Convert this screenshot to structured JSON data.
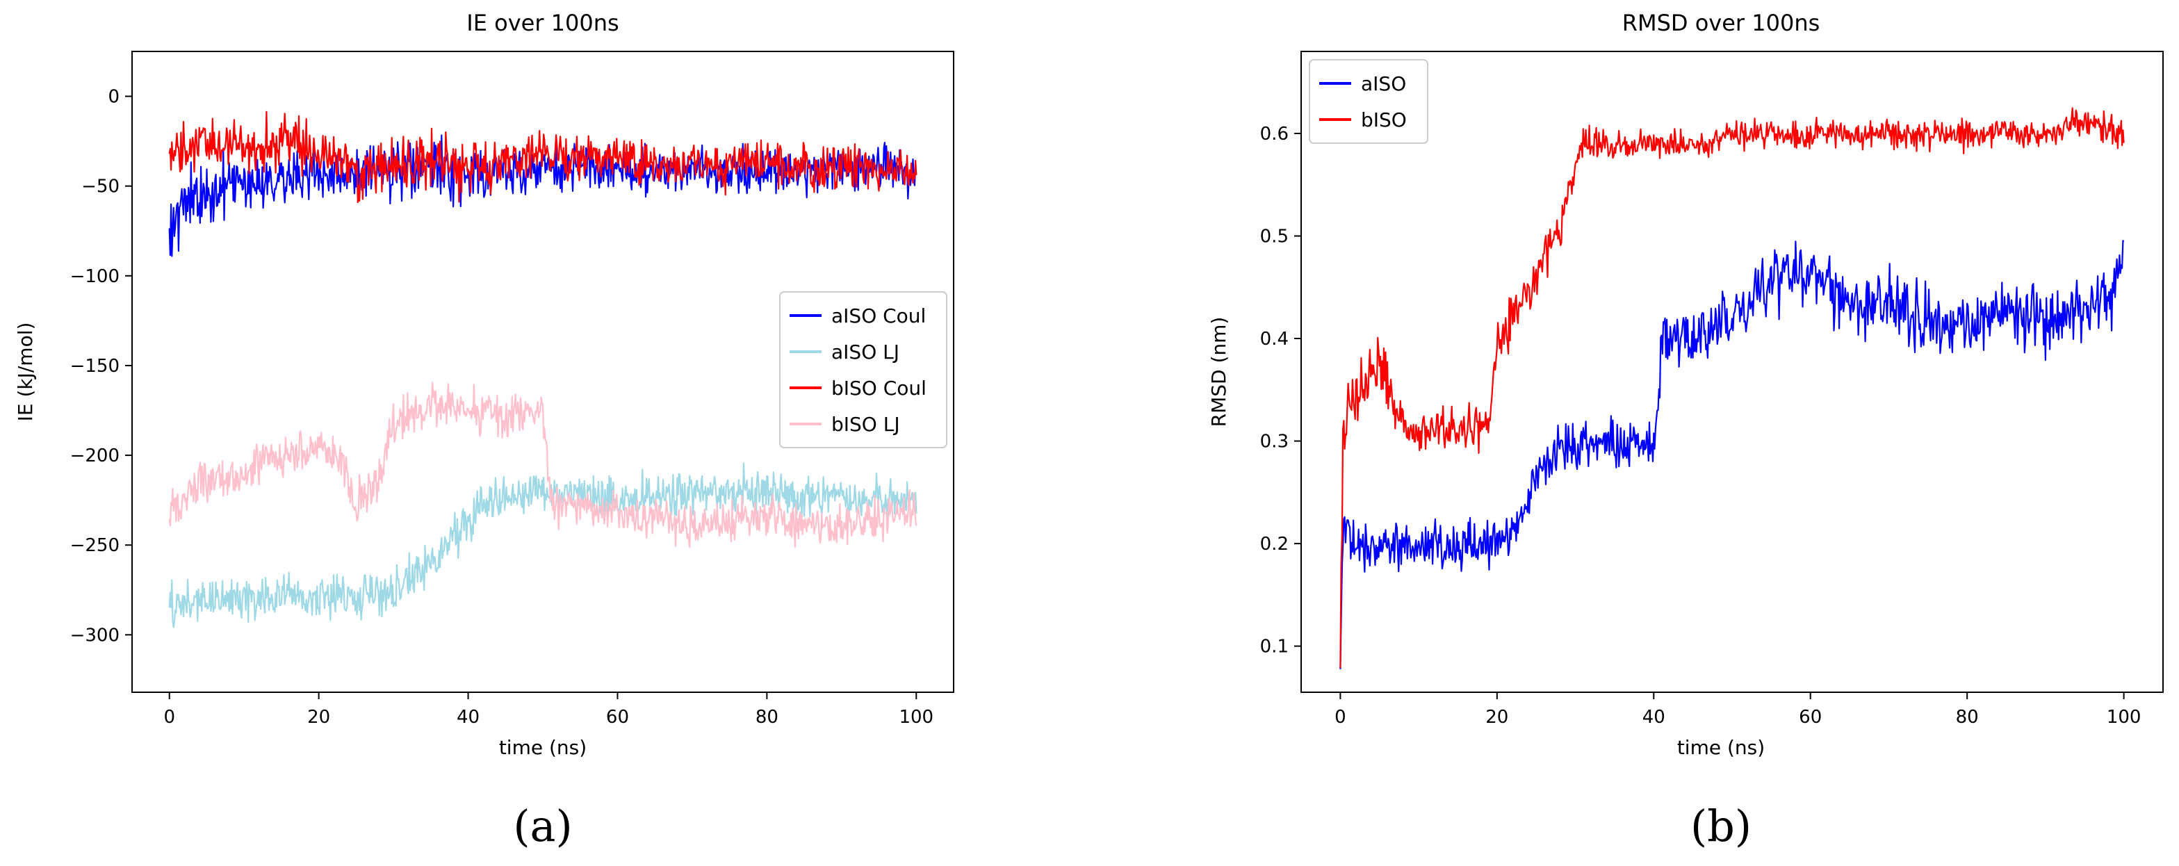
{
  "chart_data": [
    {
      "type": "line",
      "title": "IE over 100ns",
      "xlabel": "time (ns)",
      "ylabel": "IE (kJ/mol)",
      "panel_label": "(a)",
      "xlim": [
        -5,
        105
      ],
      "ylim": [
        -332,
        25
      ],
      "xticks": [
        0,
        20,
        40,
        60,
        80,
        100
      ],
      "yticks": [
        0,
        -50,
        -100,
        -150,
        -200,
        -250,
        -300
      ],
      "legend": "center-right",
      "grid": false,
      "series": [
        {
          "name": "aISO Coul",
          "color": "#0000ff",
          "x": [
            0,
            2,
            5,
            8,
            10,
            15,
            20,
            25,
            30,
            35,
            40,
            45,
            50,
            55,
            60,
            65,
            70,
            75,
            80,
            85,
            90,
            95,
            100
          ],
          "mean": [
            -70,
            -60,
            -55,
            -50,
            -47,
            -45,
            -43,
            -45,
            -42,
            -40,
            -45,
            -42,
            -40,
            -40,
            -40,
            -42,
            -40,
            -42,
            -40,
            -42,
            -40,
            -40,
            -42
          ],
          "spread": [
            30,
            25,
            22,
            22,
            22,
            22,
            22,
            24,
            25,
            25,
            25,
            20,
            18,
            18,
            18,
            18,
            18,
            18,
            18,
            18,
            18,
            18,
            18
          ]
        },
        {
          "name": "aISO LJ",
          "color": "#9fd9e6",
          "x": [
            0,
            5,
            10,
            15,
            20,
            25,
            30,
            33,
            36,
            40,
            43,
            46,
            50,
            55,
            60,
            65,
            70,
            75,
            80,
            85,
            90,
            95,
            100
          ],
          "mean": [
            -285,
            -280,
            -280,
            -278,
            -280,
            -278,
            -275,
            -268,
            -255,
            -235,
            -225,
            -222,
            -220,
            -222,
            -225,
            -222,
            -220,
            -222,
            -220,
            -225,
            -222,
            -225,
            -225
          ],
          "spread": [
            18,
            18,
            18,
            18,
            18,
            18,
            18,
            18,
            18,
            20,
            20,
            18,
            18,
            18,
            18,
            18,
            18,
            18,
            18,
            18,
            18,
            18,
            18
          ]
        },
        {
          "name": "bISO Coul",
          "color": "#ff0000",
          "x": [
            0,
            2,
            5,
            8,
            10,
            15,
            20,
            25,
            30,
            35,
            40,
            45,
            50,
            55,
            60,
            65,
            70,
            75,
            80,
            85,
            90,
            95,
            100
          ],
          "mean": [
            -35,
            -30,
            -28,
            -28,
            -28,
            -25,
            -30,
            -40,
            -40,
            -35,
            -40,
            -35,
            -32,
            -35,
            -35,
            -38,
            -38,
            -38,
            -38,
            -40,
            -40,
            -40,
            -42
          ],
          "spread": [
            22,
            20,
            20,
            20,
            20,
            20,
            22,
            24,
            22,
            22,
            24,
            20,
            18,
            18,
            18,
            18,
            18,
            18,
            18,
            18,
            18,
            18,
            18
          ]
        },
        {
          "name": "bISO LJ",
          "color": "#ffc0cb",
          "x": [
            0,
            5,
            10,
            15,
            20,
            23,
            25,
            28,
            30,
            35,
            40,
            45,
            50,
            51,
            55,
            60,
            65,
            70,
            75,
            80,
            85,
            90,
            95,
            100
          ],
          "mean": [
            -228,
            -215,
            -210,
            -200,
            -195,
            -200,
            -230,
            -215,
            -185,
            -170,
            -172,
            -180,
            -175,
            -225,
            -228,
            -232,
            -235,
            -240,
            -238,
            -235,
            -238,
            -240,
            -235,
            -232
          ],
          "spread": [
            18,
            18,
            18,
            18,
            18,
            18,
            18,
            18,
            18,
            18,
            18,
            18,
            18,
            18,
            16,
            16,
            16,
            16,
            16,
            16,
            16,
            16,
            16,
            16
          ]
        }
      ]
    },
    {
      "type": "line",
      "title": "RMSD over 100ns",
      "xlabel": "time (ns)",
      "ylabel": "RMSD (nm)",
      "panel_label": "(b)",
      "xlim": [
        -5,
        105
      ],
      "ylim": [
        0.055,
        0.68
      ],
      "xticks": [
        0,
        20,
        40,
        60,
        80,
        100
      ],
      "yticks": [
        0.1,
        0.2,
        0.3,
        0.4,
        0.5,
        0.6
      ],
      "legend": "top-left",
      "grid": false,
      "series": [
        {
          "name": "aISO",
          "color": "#0000ff",
          "x": [
            0,
            0.3,
            1,
            3,
            5,
            10,
            15,
            20,
            23,
            25,
            28,
            30,
            35,
            40,
            41,
            45,
            50,
            55,
            58,
            60,
            65,
            70,
            75,
            80,
            85,
            90,
            95,
            99,
            100
          ],
          "mean": [
            0.08,
            0.2,
            0.21,
            0.2,
            0.2,
            0.2,
            0.2,
            0.2,
            0.22,
            0.27,
            0.29,
            0.3,
            0.3,
            0.29,
            0.4,
            0.4,
            0.42,
            0.46,
            0.47,
            0.46,
            0.43,
            0.44,
            0.42,
            0.41,
            0.43,
            0.42,
            0.43,
            0.44,
            0.5
          ],
          "spread": [
            0.01,
            0.05,
            0.04,
            0.035,
            0.035,
            0.035,
            0.035,
            0.035,
            0.035,
            0.035,
            0.035,
            0.035,
            0.035,
            0.035,
            0.04,
            0.04,
            0.04,
            0.045,
            0.05,
            0.045,
            0.045,
            0.045,
            0.045,
            0.045,
            0.045,
            0.045,
            0.045,
            0.045,
            0.05
          ]
        },
        {
          "name": "bISO",
          "color": "#ff0000",
          "x": [
            0,
            0.3,
            1,
            3,
            5,
            8,
            10,
            15,
            19,
            20,
            23,
            25,
            27,
            28,
            30,
            31,
            35,
            40,
            45,
            50,
            55,
            60,
            65,
            70,
            75,
            80,
            85,
            90,
            95,
            100
          ],
          "mean": [
            0.08,
            0.3,
            0.33,
            0.36,
            0.37,
            0.32,
            0.31,
            0.31,
            0.32,
            0.4,
            0.43,
            0.46,
            0.5,
            0.5,
            0.57,
            0.59,
            0.59,
            0.59,
            0.59,
            0.6,
            0.6,
            0.6,
            0.6,
            0.6,
            0.6,
            0.6,
            0.6,
            0.6,
            0.61,
            0.6
          ],
          "spread": [
            0.01,
            0.06,
            0.05,
            0.05,
            0.05,
            0.035,
            0.03,
            0.03,
            0.03,
            0.035,
            0.035,
            0.035,
            0.035,
            0.035,
            0.025,
            0.022,
            0.02,
            0.02,
            0.02,
            0.02,
            0.02,
            0.02,
            0.02,
            0.02,
            0.02,
            0.02,
            0.02,
            0.02,
            0.025,
            0.02
          ]
        }
      ]
    }
  ]
}
